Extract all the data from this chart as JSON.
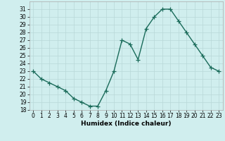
{
  "x": [
    0,
    1,
    2,
    3,
    4,
    5,
    6,
    7,
    8,
    9,
    10,
    11,
    12,
    13,
    14,
    15,
    16,
    17,
    18,
    19,
    20,
    21,
    22,
    23
  ],
  "y": [
    23,
    22,
    21.5,
    21,
    20.5,
    19.5,
    19,
    18.5,
    18.5,
    20.5,
    23,
    27,
    26.5,
    24.5,
    28.5,
    30,
    31,
    31,
    29.5,
    28,
    26.5,
    25,
    23.5,
    23
  ],
  "line_color": "#1a6b5a",
  "marker": "+",
  "marker_size": 4,
  "marker_color": "#1a6b5a",
  "background_color": "#d0eeee",
  "grid_color": "#b8d8d8",
  "xlabel": "Humidex (Indice chaleur)",
  "xlim": [
    -0.5,
    23.5
  ],
  "ylim": [
    18,
    32
  ],
  "yticks": [
    18,
    19,
    20,
    21,
    22,
    23,
    24,
    25,
    26,
    27,
    28,
    29,
    30,
    31
  ],
  "xticks": [
    0,
    1,
    2,
    3,
    4,
    5,
    6,
    7,
    8,
    9,
    10,
    11,
    12,
    13,
    14,
    15,
    16,
    17,
    18,
    19,
    20,
    21,
    22,
    23
  ],
  "tick_fontsize": 5.5,
  "xlabel_fontsize": 6.5,
  "linewidth": 1.0
}
